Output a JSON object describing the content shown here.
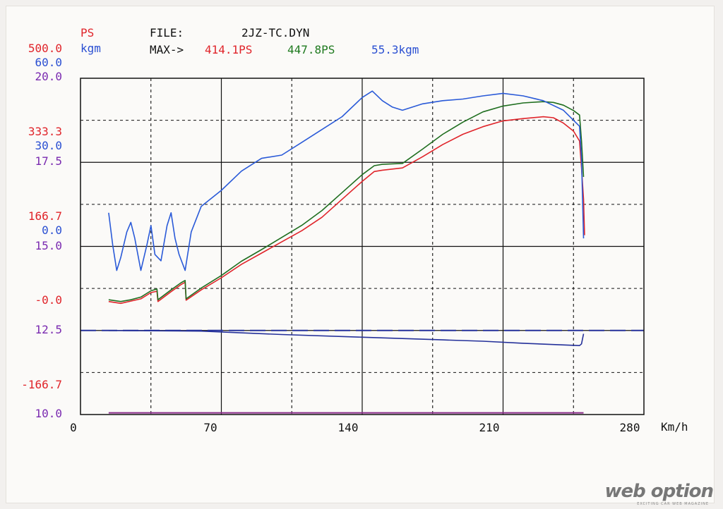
{
  "header": {
    "ps_label": "PS",
    "kgm_label": "kgm",
    "file_label": "FILE:",
    "file_name": "2JZ-TC.DYN",
    "max_label": "MAX->",
    "max_ps_red": "414.1PS",
    "max_ps_green": "447.8PS",
    "max_kgm": "55.3kgm"
  },
  "axis_labels": {
    "red": [
      "500.0",
      "333.3",
      "166.7",
      "-0.0",
      "-166.7"
    ],
    "blue": [
      "60.0",
      "30.0",
      "0.0"
    ],
    "purple": [
      "20.0",
      "17.5",
      "15.0",
      "12.5",
      "10.0"
    ]
  },
  "x_ticks": [
    "0",
    "70",
    "140",
    "210",
    "280"
  ],
  "x_unit": "Km/h",
  "watermark": {
    "brand": "web option",
    "tagline": "EXCITING CAR WEB MAGAZINE"
  },
  "colors": {
    "red": "#e0242a",
    "green": "#1f6e1f",
    "blue": "#2a5ad8",
    "navy": "#24309a",
    "purple": "#8a2a8a"
  },
  "chart_data": {
    "type": "line",
    "xlabel": "Km/h",
    "xlim": [
      0,
      280
    ],
    "y_axes": {
      "PS": [
        -250,
        500
      ],
      "kgm": [
        -45,
        60
      ],
      "purple_scale": [
        10.0,
        20.0
      ]
    },
    "grid": true,
    "series": [
      {
        "name": "414.1PS",
        "color": "red",
        "axis": "PS",
        "x": [
          14,
          20,
          25,
          30,
          35,
          38,
          38.5,
          45,
          50,
          52,
          52.5,
          60,
          70,
          80,
          90,
          100,
          110,
          120,
          130,
          140,
          146,
          150,
          160,
          170,
          180,
          190,
          200,
          210,
          220,
          230,
          235,
          240,
          245,
          248,
          249,
          250,
          250.5
        ],
        "y": [
          2,
          -2,
          3,
          8,
          22,
          25,
          2,
          24,
          40,
          45,
          5,
          28,
          55,
          85,
          110,
          135,
          160,
          190,
          230,
          270,
          292,
          295,
          300,
          325,
          352,
          375,
          392,
          405,
          410,
          414.1,
          412,
          400,
          382,
          360,
          300,
          230,
          150
        ]
      },
      {
        "name": "447.8PS",
        "color": "green",
        "axis": "PS",
        "x": [
          14,
          20,
          25,
          30,
          35,
          38,
          38.5,
          45,
          50,
          52,
          52.5,
          60,
          70,
          80,
          90,
          100,
          110,
          120,
          130,
          140,
          146,
          150,
          160,
          170,
          180,
          190,
          200,
          210,
          220,
          230,
          235,
          240,
          245,
          248,
          249,
          250
        ],
        "y": [
          6,
          2,
          6,
          12,
          26,
          30,
          6,
          28,
          44,
          49,
          8,
          32,
          60,
          92,
          118,
          145,
          172,
          205,
          245,
          285,
          305,
          308,
          310,
          342,
          375,
          402,
          425,
          438,
          445,
          447.8,
          446,
          440,
          428,
          418,
          360,
          280
        ]
      },
      {
        "name": "55.3kgm",
        "color": "blue",
        "axis": "kgm",
        "x": [
          14,
          16,
          18,
          20,
          23,
          25,
          27,
          30,
          33,
          35,
          37,
          40,
          43,
          45,
          47,
          49,
          52,
          55,
          60,
          70,
          80,
          90,
          100,
          110,
          120,
          130,
          140,
          145,
          150,
          155,
          160,
          170,
          180,
          190,
          200,
          210,
          220,
          230,
          240,
          248,
          249,
          250
        ],
        "y": [
          18,
          8,
          0,
          4,
          12,
          15,
          10,
          0,
          8,
          14,
          5,
          3,
          14,
          18,
          10,
          5,
          0,
          12,
          20,
          25,
          31,
          35,
          36,
          40,
          44,
          48,
          54,
          56,
          53,
          51,
          50,
          52,
          53,
          53.5,
          54.5,
          55.3,
          54.5,
          53,
          50,
          45,
          35,
          10
        ]
      },
      {
        "name": "",
        "color": "navy",
        "axis": "purple_scale",
        "x": [
          14,
          60,
          100,
          140,
          180,
          200,
          220,
          248,
          249,
          250
        ],
        "y": [
          12.5,
          12.48,
          12.38,
          12.3,
          12.22,
          12.18,
          12.12,
          12.05,
          12.1,
          12.4
        ]
      },
      {
        "name": "",
        "color": "purple",
        "axis": "purple_scale",
        "x": [
          14,
          250
        ],
        "y": [
          10.05,
          10.05
        ]
      }
    ],
    "reference_line": {
      "axis": "purple_scale",
      "y": 12.5,
      "style": "dashed",
      "color": "navy"
    }
  }
}
